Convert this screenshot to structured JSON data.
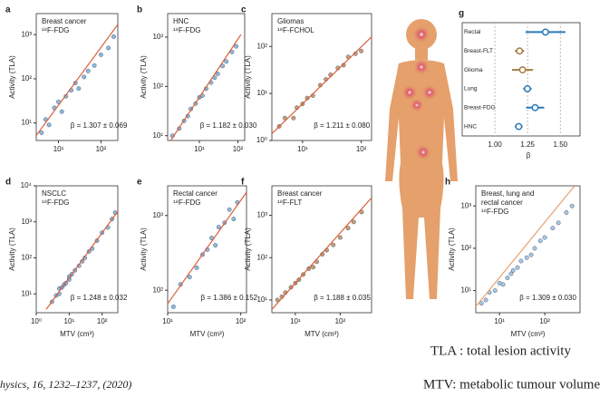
{
  "chart_data": [
    {
      "type": "scatter",
      "panel": "a",
      "label": [
        "Breast cancer",
        "¹⁸F-FDG"
      ],
      "annotation": "β = 1.307 ± 0.069",
      "ylabel": "Activity (TLA)",
      "xscale": "log",
      "yscale": "log",
      "xlim": [
        3,
        250
      ],
      "ylim": [
        4,
        3000
      ],
      "xticks": [
        {
          "value": 10,
          "label": "10¹"
        },
        {
          "value": 100,
          "label": "10²"
        }
      ],
      "yticks": [
        {
          "value": 10,
          "label": "10¹"
        },
        {
          "value": 100,
          "label": "10²"
        },
        {
          "value": 1000,
          "label": "10³"
        }
      ],
      "series": [
        {
          "color": "#5aa0d0",
          "x": [
            4,
            5,
            6,
            8,
            10,
            12,
            15,
            20,
            25,
            30,
            40,
            50,
            70,
            100,
            150,
            200
          ],
          "values": [
            6,
            12,
            9,
            22,
            30,
            18,
            40,
            55,
            80,
            60,
            110,
            150,
            200,
            350,
            500,
            900
          ]
        }
      ],
      "fit": {
        "color": "#d9603b",
        "x": [
          3,
          250
        ],
        "y": [
          5.2,
          1700
        ]
      }
    },
    {
      "type": "scatter",
      "panel": "b",
      "label": [
        "HNC",
        "¹⁸F-FDG"
      ],
      "annotation": "β = 1.182 ± 0.030",
      "ylabel": "Activity (TLA)",
      "xscale": "log",
      "yscale": "log",
      "xlim": [
        1.5,
        150
      ],
      "ylim": [
        8,
        3000
      ],
      "xticks": [
        {
          "value": 10,
          "label": "10¹"
        },
        {
          "value": 100,
          "label": "10²"
        }
      ],
      "yticks": [
        {
          "value": 10,
          "label": "10¹"
        },
        {
          "value": 100,
          "label": "10²"
        },
        {
          "value": 1000,
          "label": "10³"
        }
      ],
      "series": [
        {
          "color": "#5aa0d0",
          "x": [
            2,
            3,
            4,
            5,
            6,
            8,
            10,
            12,
            15,
            20,
            25,
            30,
            40,
            50,
            70,
            90
          ],
          "values": [
            10,
            14,
            20,
            25,
            35,
            45,
            60,
            65,
            90,
            120,
            150,
            180,
            260,
            320,
            500,
            650
          ]
        }
      ],
      "fit": {
        "color": "#d9603b",
        "x": [
          1.8,
          120
        ],
        "y": [
          8,
          1130
        ]
      }
    },
    {
      "type": "scatter",
      "panel": "c",
      "label": [
        "Gliomas",
        "¹⁸F-FCHOL"
      ],
      "annotation": "β = 1.211 ± 0.080",
      "ylabel": "Activity (TLA)",
      "xscale": "log",
      "yscale": "log",
      "xlim": [
        3,
        150
      ],
      "ylim": [
        1,
        500
      ],
      "xticks": [
        {
          "value": 10,
          "label": "10¹"
        },
        {
          "value": 100,
          "label": "10²"
        }
      ],
      "yticks": [
        {
          "value": 1,
          "label": "10⁰"
        },
        {
          "value": 10,
          "label": "10¹"
        },
        {
          "value": 100,
          "label": "10²"
        }
      ],
      "series": [
        {
          "color": "#a57a3e",
          "x": [
            4,
            5,
            7,
            8,
            10,
            12,
            15,
            20,
            25,
            30,
            40,
            50,
            60,
            80,
            100
          ],
          "values": [
            2,
            3,
            3,
            5,
            6,
            8,
            9,
            15,
            20,
            25,
            35,
            40,
            60,
            70,
            80
          ]
        }
      ],
      "fit": {
        "color": "#d9603b",
        "x": [
          3,
          150
        ],
        "y": [
          1.4,
          160
        ]
      }
    },
    {
      "type": "scatter",
      "panel": "d",
      "label": [
        "NSCLC",
        "¹⁸F-FDG"
      ],
      "annotation": "β = 1.248 ± 0.032",
      "xlabel": "MTV (cm³)",
      "ylabel": "Activity (TLA)",
      "xscale": "log",
      "yscale": "log",
      "xlim": [
        1,
        300
      ],
      "ylim": [
        3,
        10000
      ],
      "xticks": [
        {
          "value": 1,
          "label": "10⁰"
        },
        {
          "value": 10,
          "label": "10¹"
        },
        {
          "value": 100,
          "label": "10²"
        }
      ],
      "yticks": [
        {
          "value": 10,
          "label": "10¹"
        },
        {
          "value": 100,
          "label": "10²"
        },
        {
          "value": 1000,
          "label": "10³"
        },
        {
          "value": 10000,
          "label": "10⁴"
        }
      ],
      "series": [
        {
          "color": "#5aa0d0",
          "x": [
            3,
            4,
            5,
            5,
            6,
            7,
            8,
            10,
            10,
            12,
            15,
            20,
            25,
            30,
            40,
            50,
            70,
            100,
            150,
            200,
            250
          ],
          "values": [
            6,
            9,
            10,
            14,
            15,
            18,
            20,
            30,
            25,
            35,
            45,
            60,
            80,
            100,
            150,
            180,
            300,
            500,
            700,
            1200,
            1800
          ]
        }
      ],
      "fit": {
        "color": "#d9603b",
        "x": [
          2,
          300
        ],
        "y": [
          3.7,
          1950
        ]
      }
    },
    {
      "type": "scatter",
      "panel": "e",
      "label": [
        "Rectal cancer",
        "¹⁸F-FDG"
      ],
      "annotation": "β = 1.386 ± 0.152",
      "xlabel": "MTV (cm³)",
      "ylabel": "Activity (TLA)",
      "xscale": "log",
      "yscale": "log",
      "xlim": [
        10,
        120
      ],
      "ylim": [
        50,
        2500
      ],
      "xticks": [
        {
          "value": 10,
          "label": "10¹"
        },
        {
          "value": 100,
          "label": "10²"
        }
      ],
      "yticks": [
        {
          "value": 100,
          "label": "10²"
        },
        {
          "value": 1000,
          "label": "10³"
        }
      ],
      "series": [
        {
          "color": "#5aa0d0",
          "x": [
            12,
            15,
            20,
            25,
            30,
            35,
            40,
            45,
            50,
            60,
            70,
            80,
            90
          ],
          "values": [
            60,
            120,
            150,
            200,
            300,
            350,
            500,
            400,
            700,
            800,
            1200,
            900,
            1500
          ]
        }
      ],
      "fit": {
        "color": "#d9603b",
        "x": [
          10,
          120
        ],
        "y": [
          66,
          2050
        ]
      }
    },
    {
      "type": "scatter",
      "panel": "f",
      "label": [
        "Breast cancer",
        "¹⁸F-FLT"
      ],
      "annotation": "β = 1.188 ± 0.035",
      "xlabel": "MTV (cm³)",
      "ylabel": "Activity (TLA)",
      "xscale": "log",
      "yscale": "log",
      "xlim": [
        3,
        500
      ],
      "ylim": [
        5,
        5000
      ],
      "xticks": [
        {
          "value": 10,
          "label": "10¹"
        },
        {
          "value": 100,
          "label": "10²"
        }
      ],
      "yticks": [
        {
          "value": 10,
          "label": "10¹"
        },
        {
          "value": 100,
          "label": "10²"
        },
        {
          "value": 1000,
          "label": "10³"
        }
      ],
      "series": [
        {
          "color": "#a57a3e",
          "x": [
            4,
            5,
            6,
            8,
            10,
            12,
            15,
            20,
            25,
            30,
            40,
            50,
            70,
            100,
            150,
            200,
            300
          ],
          "values": [
            10,
            12,
            15,
            20,
            25,
            30,
            40,
            55,
            60,
            80,
            120,
            150,
            200,
            300,
            500,
            700,
            1200
          ]
        }
      ],
      "fit": {
        "color": "#d9603b",
        "x": [
          3,
          500
        ],
        "y": [
          6,
          2600
        ]
      }
    },
    {
      "type": "forest",
      "panel": "g",
      "xlabel": "β",
      "categories": [
        "Rectal",
        "Breast-FLT",
        "Glioma",
        "Lung",
        "Breast-FDG",
        "HNC"
      ],
      "values": [
        1.386,
        1.188,
        1.211,
        1.248,
        1.307,
        1.182
      ],
      "errors": [
        0.152,
        0.035,
        0.08,
        0.032,
        0.069,
        0.03
      ],
      "colors": [
        "#2a7ab8",
        "#a57a3e",
        "#a57a3e",
        "#2a7ab8",
        "#2a7ab8",
        "#2a7ab8"
      ],
      "xlim": [
        0.75,
        1.65
      ],
      "xticks": [
        {
          "value": 1,
          "label": "1.00"
        },
        {
          "value": 1.25,
          "label": "1.25"
        },
        {
          "value": 1.5,
          "label": "1.50"
        }
      ]
    },
    {
      "type": "scatter",
      "panel": "h",
      "label": [
        "Breast, lung and",
        "rectal cancer",
        "¹⁸F-FDG"
      ],
      "annotation": "β = 1.309 ± 0.030",
      "xlabel": "MTV (cm³)",
      "ylabel": "Activity (TLA)",
      "xscale": "log",
      "yscale": "log",
      "xlim": [
        3,
        600
      ],
      "ylim": [
        3,
        3000
      ],
      "xticks": [
        {
          "value": 10,
          "label": "10¹"
        },
        {
          "value": 100,
          "label": "10²"
        }
      ],
      "yticks": [
        {
          "value": 10,
          "label": "10¹"
        },
        {
          "value": 100,
          "label": "10²"
        },
        {
          "value": 1000,
          "label": "10³"
        }
      ],
      "series": [
        {
          "color": "#7fb2d9",
          "x": [
            4,
            5,
            6,
            8,
            10,
            12,
            15,
            18,
            20,
            25,
            30,
            40,
            50,
            60,
            80,
            100,
            150,
            200,
            300,
            400
          ],
          "values": [
            5,
            6,
            9,
            10,
            15,
            14,
            20,
            25,
            30,
            35,
            50,
            60,
            70,
            100,
            150,
            180,
            300,
            400,
            700,
            1000
          ]
        }
      ],
      "fit": {
        "color": "#e8a070",
        "x": [
          3,
          450
        ],
        "y": [
          4.2,
          2950
        ]
      }
    }
  ],
  "footer": {
    "citation": "hysics, 16, 1232–1237, (2020)",
    "tla": "TLA : total lesion activity",
    "mtv": "MTV: metabolic tumour volume"
  }
}
